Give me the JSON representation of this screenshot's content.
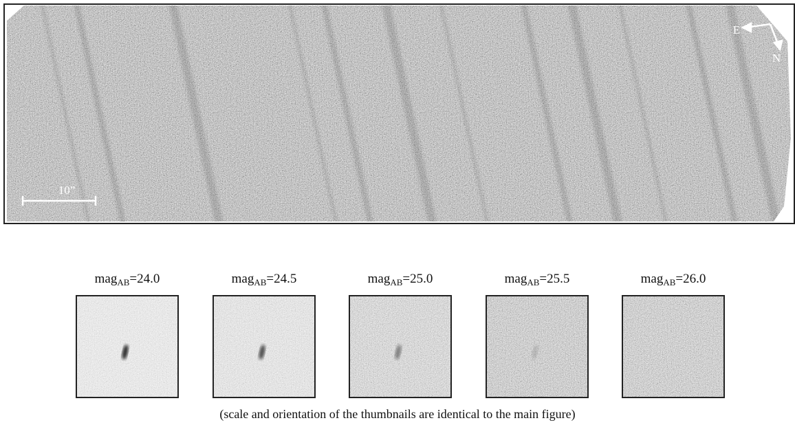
{
  "figure": {
    "main_image": {
      "scale_bar": "10”",
      "compass": {
        "east": "E",
        "north": "N"
      }
    },
    "thumbnails": [
      {
        "label": "mag",
        "subscript": "AB",
        "value": "=24.0"
      },
      {
        "label": "mag",
        "subscript": "AB",
        "value": "=24.5"
      },
      {
        "label": "mag",
        "subscript": "AB",
        "value": "=25.0"
      },
      {
        "label": "mag",
        "subscript": "AB",
        "value": "=25.5"
      },
      {
        "label": "mag",
        "subscript": "AB",
        "value": "=26.0"
      }
    ],
    "caption": "(scale and orientation of the thumbnails are identical to the main figure)"
  }
}
